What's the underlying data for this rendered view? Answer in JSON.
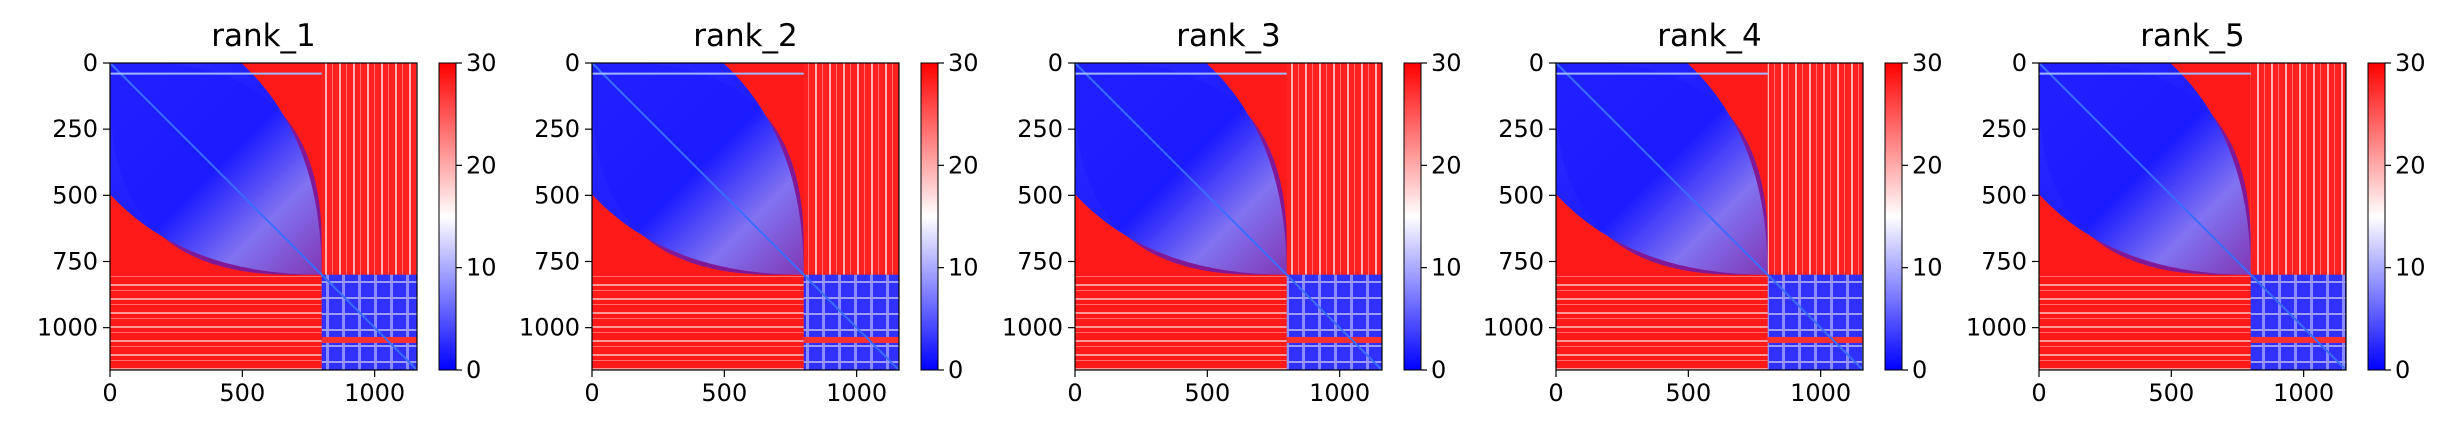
{
  "chart_data": [
    {
      "type": "heatmap",
      "title": "rank_1",
      "x_ticks": [
        "0",
        "500",
        "1000"
      ],
      "y_ticks": [
        "0",
        "250",
        "500",
        "750",
        "1000"
      ],
      "xlim": [
        0,
        1160
      ],
      "ylim": [
        1160,
        0
      ],
      "colorbar": {
        "ticks": [
          "0",
          "10",
          "20",
          "30"
        ],
        "range": [
          0,
          30
        ],
        "colormap": "bwr"
      },
      "block_boundary": 800
    },
    {
      "type": "heatmap",
      "title": "rank_2",
      "x_ticks": [
        "0",
        "500",
        "1000"
      ],
      "y_ticks": [
        "0",
        "250",
        "500",
        "750",
        "1000"
      ],
      "xlim": [
        0,
        1160
      ],
      "ylim": [
        1160,
        0
      ],
      "colorbar": {
        "ticks": [
          "0",
          "10",
          "20",
          "30"
        ],
        "range": [
          0,
          30
        ],
        "colormap": "bwr"
      },
      "block_boundary": 800
    },
    {
      "type": "heatmap",
      "title": "rank_3",
      "x_ticks": [
        "0",
        "500",
        "1000"
      ],
      "y_ticks": [
        "0",
        "250",
        "500",
        "750",
        "1000"
      ],
      "xlim": [
        0,
        1160
      ],
      "ylim": [
        1160,
        0
      ],
      "colorbar": {
        "ticks": [
          "0",
          "10",
          "20",
          "30"
        ],
        "range": [
          0,
          30
        ],
        "colormap": "bwr"
      },
      "block_boundary": 800
    },
    {
      "type": "heatmap",
      "title": "rank_4",
      "x_ticks": [
        "0",
        "500",
        "1000"
      ],
      "y_ticks": [
        "0",
        "250",
        "500",
        "750",
        "1000"
      ],
      "xlim": [
        0,
        1160
      ],
      "ylim": [
        1160,
        0
      ],
      "colorbar": {
        "ticks": [
          "0",
          "10",
          "20",
          "30"
        ],
        "range": [
          0,
          30
        ],
        "colormap": "bwr"
      },
      "block_boundary": 800
    },
    {
      "type": "heatmap",
      "title": "rank_5",
      "x_ticks": [
        "0",
        "500",
        "1000"
      ],
      "y_ticks": [
        "0",
        "250",
        "500",
        "750",
        "1000"
      ],
      "xlim": [
        0,
        1160
      ],
      "ylim": [
        1160,
        0
      ],
      "colorbar": {
        "ticks": [
          "0",
          "10",
          "20",
          "30"
        ],
        "range": [
          0,
          30
        ],
        "colormap": "bwr"
      },
      "block_boundary": 800
    }
  ],
  "colors": {
    "low": "#0000ff",
    "mid": "#ffffff",
    "high": "#ff0000"
  }
}
